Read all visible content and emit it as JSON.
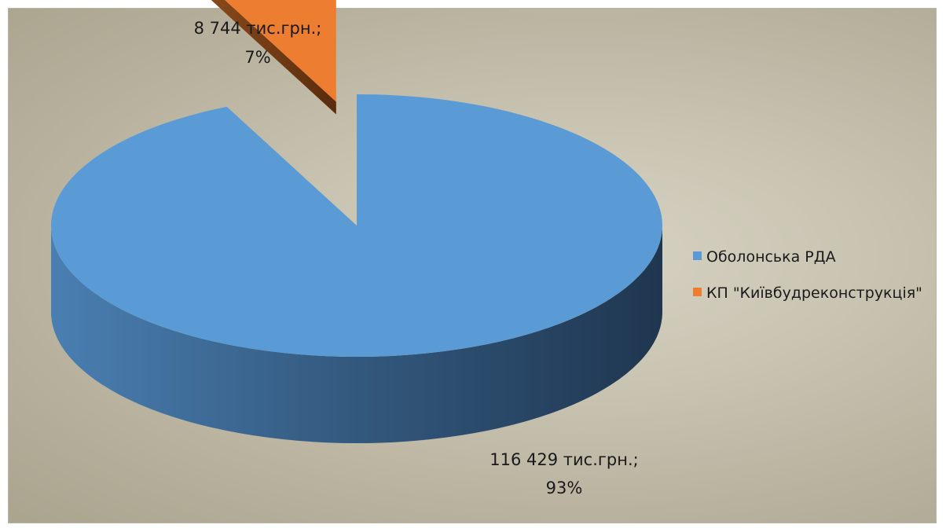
{
  "chart_data": {
    "type": "pie",
    "style": "3d-exploded",
    "title": "",
    "unit": "тис.грн.",
    "legend_position": "right",
    "slices": [
      {
        "name": "Оболонська РДА",
        "value": 116429,
        "percent": 93,
        "label_value": "116 429 тис.грн.;",
        "label_percent": "93%",
        "color": "#5b9bd5"
      },
      {
        "name": "КП \"Київбудреконструкція\"",
        "value": 8744,
        "percent": 7,
        "label_value": "8 744 тис.грн.;",
        "label_percent": "7%",
        "color": "#ed7d31"
      }
    ]
  }
}
